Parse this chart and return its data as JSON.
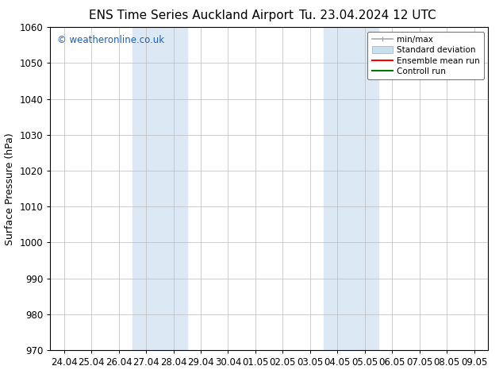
{
  "title_left": "ENS Time Series Auckland Airport",
  "title_right": "Tu. 23.04.2024 12 UTC",
  "ylabel": "Surface Pressure (hPa)",
  "ylim": [
    970,
    1060
  ],
  "yticks": [
    970,
    980,
    990,
    1000,
    1010,
    1020,
    1030,
    1040,
    1050,
    1060
  ],
  "xtick_labels": [
    "24.04",
    "25.04",
    "26.04",
    "27.04",
    "28.04",
    "29.04",
    "30.04",
    "01.05",
    "02.05",
    "03.05",
    "04.05",
    "05.05",
    "06.05",
    "07.05",
    "08.05",
    "09.05"
  ],
  "background_color": "#ffffff",
  "plot_bg_color": "#ffffff",
  "shade_regions": [
    {
      "xstart": 3,
      "xend": 5,
      "color": "#dce9f5"
    },
    {
      "xstart": 10,
      "xend": 12,
      "color": "#dce9f5"
    }
  ],
  "watermark": "© weatheronline.co.uk",
  "watermark_color": "#1a5fbf",
  "legend_items": [
    {
      "label": "min/max",
      "color": "#aaaaaa",
      "lw": 1.2
    },
    {
      "label": "Standard deviation",
      "color": "#c8dff0",
      "lw": 7
    },
    {
      "label": "Ensemble mean run",
      "color": "#ff0000",
      "lw": 1.5
    },
    {
      "label": "Controll run",
      "color": "#007700",
      "lw": 1.5
    }
  ],
  "grid_color": "#bbbbbb",
  "title_fontsize": 11,
  "tick_fontsize": 8.5,
  "ylabel_fontsize": 9
}
